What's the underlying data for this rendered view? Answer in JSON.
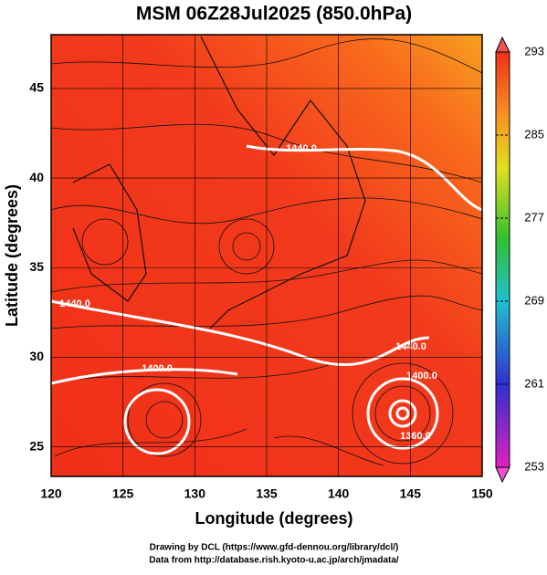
{
  "title": "MSM 06Z28Jul2025 (850.0hPa)",
  "x_label": "Longitude (degrees)",
  "y_label": "Latitude  (degrees)",
  "xlim": [
    120,
    150
  ],
  "ylim": [
    23.35,
    48
  ],
  "xticks": [
    120,
    125,
    130,
    135,
    140,
    145,
    150
  ],
  "yticks": [
    25,
    30,
    35,
    40,
    45
  ],
  "colorbar": {
    "lim": [
      253,
      293
    ],
    "ticks": [
      253,
      261,
      269,
      277,
      285,
      293
    ]
  },
  "contour_labels": [
    "1440.0",
    "1440.0",
    "1440.0",
    "1400.0",
    "1400.0",
    "1360.0"
  ],
  "footer": [
    "Drawing by DCL (https://www.gfd-dennou.org/library/dcl/)",
    "Data from http://database.rish.kyoto-u.ac.jp/arch/jmadata/"
  ]
}
